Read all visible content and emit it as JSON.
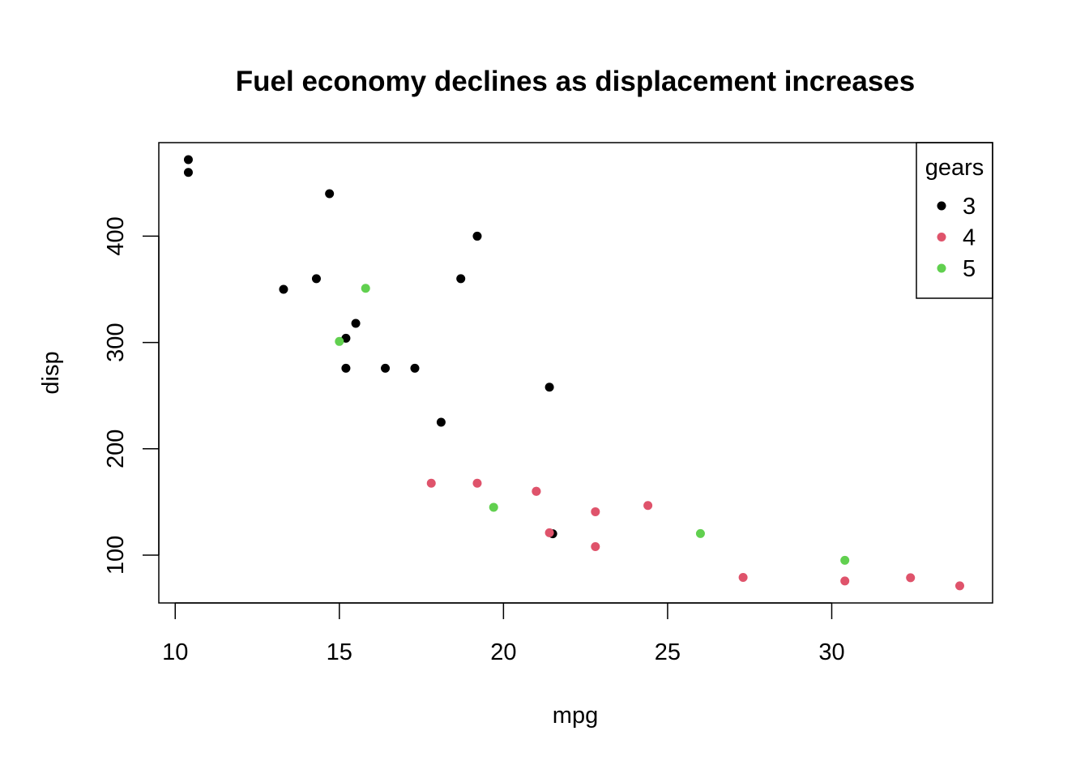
{
  "chart_data": {
    "type": "scatter",
    "title": "Fuel economy declines as displacement increases",
    "xlabel": "mpg",
    "ylabel": "disp",
    "xlim": [
      9.5,
      34.9
    ],
    "ylim": [
      55,
      488
    ],
    "xticks": [
      10,
      15,
      20,
      25,
      30
    ],
    "yticks": [
      100,
      200,
      300,
      400
    ],
    "grid": false,
    "legend": {
      "title": "gears",
      "position": "top-right"
    },
    "series": [
      {
        "name": "3",
        "color": "#000000",
        "points": [
          [
            21.4,
            258
          ],
          [
            18.7,
            360
          ],
          [
            18.1,
            225
          ],
          [
            14.3,
            360
          ],
          [
            16.4,
            275.8
          ],
          [
            17.3,
            275.8
          ],
          [
            15.2,
            275.8
          ],
          [
            10.4,
            472
          ],
          [
            10.4,
            460
          ],
          [
            14.7,
            440
          ],
          [
            21.5,
            120.1
          ],
          [
            15.5,
            318
          ],
          [
            15.2,
            304
          ],
          [
            13.3,
            350
          ],
          [
            19.2,
            400
          ]
        ]
      },
      {
        "name": "4",
        "color": "#DF536B",
        "points": [
          [
            21.0,
            160
          ],
          [
            21.0,
            160
          ],
          [
            22.8,
            108
          ],
          [
            24.4,
            146.7
          ],
          [
            22.8,
            140.8
          ],
          [
            19.2,
            167.6
          ],
          [
            17.8,
            167.6
          ],
          [
            32.4,
            78.7
          ],
          [
            30.4,
            75.7
          ],
          [
            33.9,
            71.1
          ],
          [
            27.3,
            79
          ],
          [
            21.4,
            121
          ]
        ]
      },
      {
        "name": "5",
        "color": "#61D04F",
        "points": [
          [
            26.0,
            120.3
          ],
          [
            30.4,
            95.1
          ],
          [
            15.8,
            351
          ],
          [
            19.7,
            145
          ],
          [
            15.0,
            301
          ]
        ]
      }
    ]
  }
}
